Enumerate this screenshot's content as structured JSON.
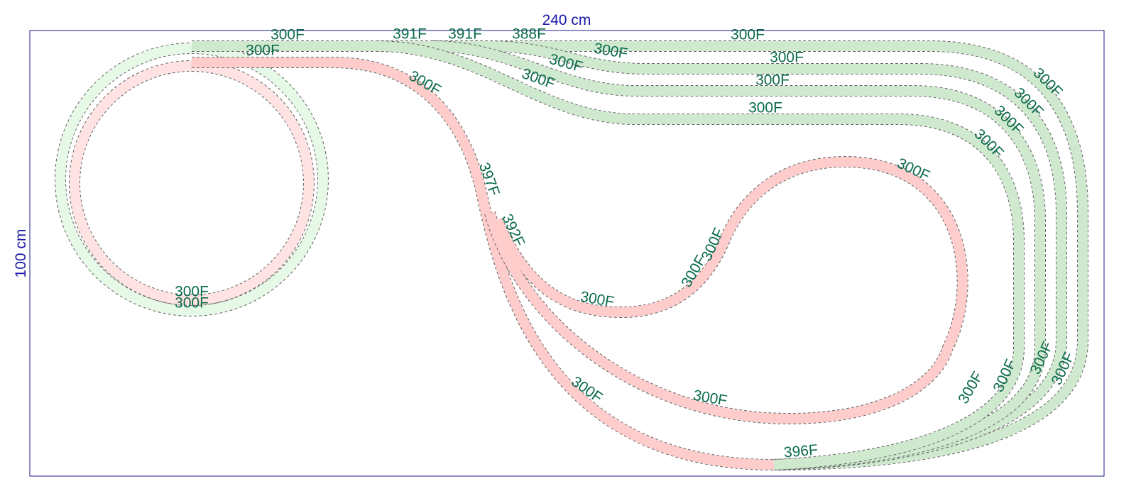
{
  "dimensions": {
    "width": "240 cm",
    "height": "100 cm"
  },
  "pieces": [
    "300F",
    "300F",
    "391F",
    "391F",
    "388F",
    "300F",
    "300F",
    "300F",
    "300F",
    "300F",
    "300F",
    "300F",
    "300F",
    "397F",
    "392F",
    "300F",
    "300F",
    "300F",
    "300F",
    "300F",
    "300F",
    "300F",
    "300F",
    "300F",
    "300F",
    "300F",
    "300F",
    "300F",
    "300F",
    "300F",
    "300F",
    "396F"
  ]
}
